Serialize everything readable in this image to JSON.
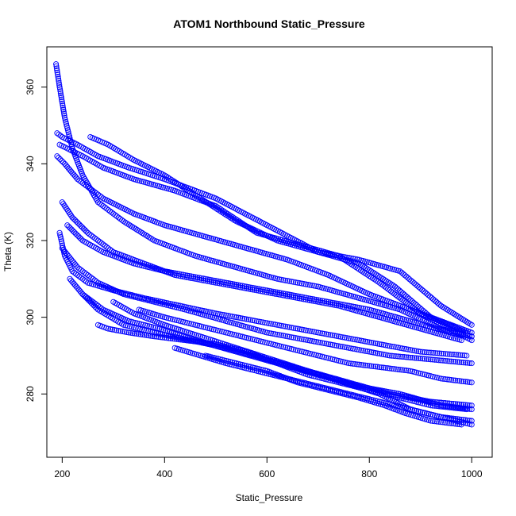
{
  "chart_data": {
    "type": "scatter",
    "title": "ATOM1 Northbound Static_Pressure",
    "xlabel": "Static_Pressure",
    "ylabel": "Theta (K)",
    "xlim": [
      170,
      1040
    ],
    "ylim": [
      263.5,
      370.5
    ],
    "x_ticks": [
      200,
      400,
      600,
      800,
      1000
    ],
    "y_ticks": [
      280,
      300,
      320,
      340,
      360
    ],
    "marker": "open-circle",
    "color": "#0000ff",
    "grid": false,
    "legend": "none",
    "series": [
      {
        "profiles": [
          {
            "x": [
              190,
              200,
              230,
              270,
              330,
              400,
              500,
              600,
              700,
              780,
              850,
              920,
              990
            ],
            "y": [
              348,
              347,
              345,
              342,
              339,
              336,
              331,
              324,
              317,
              314,
              308,
              300,
              296
            ]
          },
          {
            "x": [
              195,
              210,
              240,
              280,
              340,
              420,
              500,
              580,
              660,
              740,
              820,
              900,
              1000
            ],
            "y": [
              345,
              344,
              342,
              339,
              336,
              333,
              329,
              322,
              319,
              316,
              309,
              301,
              294
            ]
          },
          {
            "x": [
              255,
              290,
              340,
              400,
              470,
              540,
              620,
              700,
              780,
              860,
              940,
              1000
            ],
            "y": [
              347,
              345,
              341,
              337,
              331,
              325,
              320,
              317,
              315,
              312,
              303,
              298
            ]
          },
          {
            "x": [
              190,
              205,
              230,
              280,
              340,
              400,
              480,
              560,
              640,
              720,
              800,
              880,
              960,
              1000
            ],
            "y": [
              342,
              340,
              336,
              331,
              327,
              324,
              321,
              318,
              315,
              311,
              306,
              302,
              298,
              296
            ]
          },
          {
            "x": [
              188,
              195,
              205,
              220,
              240,
              270,
              320,
              380,
              460,
              540,
              620,
              700,
              780,
              860,
              940,
              1000
            ],
            "y": [
              366,
              360,
              352,
              344,
              337,
              330,
              325,
              320,
              316,
              313,
              310,
              308,
              305,
              302,
              297,
              295
            ]
          },
          {
            "x": [
              200,
              220,
              250,
              300,
              360,
              420,
              500,
              580,
              660,
              740,
              820,
              900,
              980
            ],
            "y": [
              330,
              326,
              322,
              317,
              314,
              311,
              309,
              307,
              305,
              303,
              300,
              297,
              294
            ]
          },
          {
            "x": [
              210,
              240,
              280,
              340,
              400,
              480,
              560,
              640,
              720,
              800,
              880,
              960,
              1000
            ],
            "y": [
              324,
              320,
              317,
              314,
              312,
              310,
              308,
              306,
              304,
              302,
              299,
              296,
              295
            ]
          },
          {
            "x": [
              195,
              205,
              220,
              250,
              300,
              360,
              430,
              500,
              580,
              660,
              740,
              820,
              900,
              990
            ],
            "y": [
              322,
              316,
              312,
              309,
              307,
              305,
              303,
              301,
              299,
              297,
              295,
              293,
              291,
              290
            ]
          },
          {
            "x": [
              200,
              230,
              270,
              320,
              380,
              440,
              520,
              600,
              680,
              760,
              840,
              920,
              1000
            ],
            "y": [
              318,
              313,
              309,
              306,
              304,
              302,
              299,
              296,
              294,
              292,
              290,
              289,
              288
            ]
          },
          {
            "x": [
              270,
              290,
              330,
              380,
              440,
              500,
              560,
              620,
              680,
              740,
              800,
              860,
              920,
              990
            ],
            "y": [
              298,
              297,
              296,
              295,
              294,
              293,
              291,
              288,
              285,
              283,
              281,
              279,
              277,
              276
            ]
          },
          {
            "x": [
              215,
              240,
              270,
              320,
              380,
              450,
              520,
              600,
              680,
              760,
              840,
              920,
              1000
            ],
            "y": [
              310,
              306,
              302,
              298,
              296,
              294,
              292,
              289,
              286,
              283,
              280,
              278,
              277
            ]
          },
          {
            "x": [
              240,
              280,
              330,
              390,
              460,
              540,
              620,
              700,
              780,
              860,
              940,
              1000
            ],
            "y": [
              306,
              302,
              299,
              297,
              294,
              291,
              288,
              285,
              282,
              280,
              277,
              276
            ]
          },
          {
            "x": [
              300,
              340,
              400,
              470,
              540,
              610,
              680,
              750,
              820,
              880,
              940,
              1000
            ],
            "y": [
              304,
              301,
              298,
              295,
              292,
              289,
              286,
              283,
              280,
              276,
              274,
              272
            ]
          },
          {
            "x": [
              420,
              470,
              520,
              580,
              640,
              700,
              760,
              820,
              880,
              940,
              1000
            ],
            "y": [
              292,
              290,
              288,
              286,
              284,
              282,
              280,
              278,
              276,
              274,
              273
            ]
          },
          {
            "x": [
              480,
              540,
              600,
              660,
              720,
              780,
              830,
              870,
              920,
              980
            ],
            "y": [
              290,
              288,
              286,
              283,
              281,
              279,
              277,
              275,
              273,
              272
            ]
          },
          {
            "x": [
              350,
              400,
              460,
              520,
              580,
              640,
              700,
              760,
              820,
              880,
              940,
              1000
            ],
            "y": [
              302,
              300,
              298,
              296,
              294,
              292,
              290,
              288,
              287,
              286,
              284,
              283
            ]
          }
        ]
      }
    ]
  }
}
